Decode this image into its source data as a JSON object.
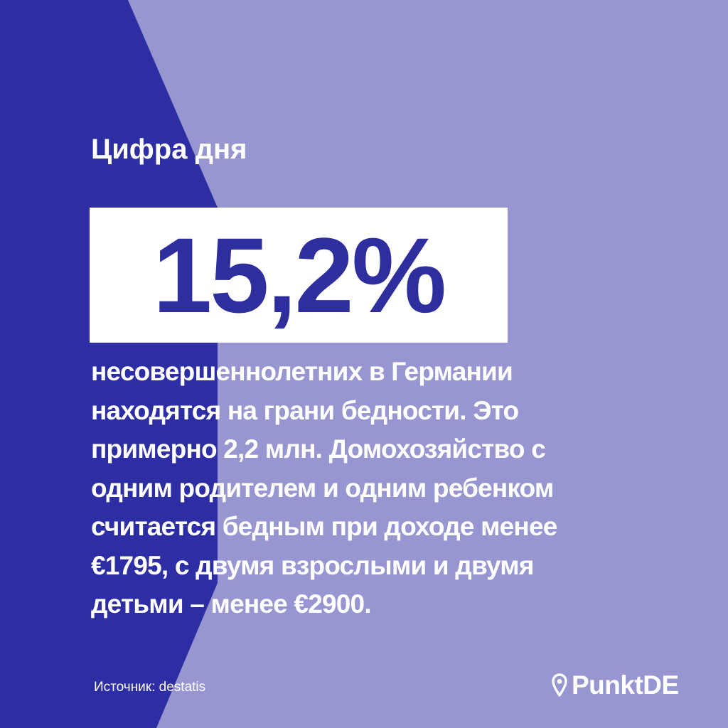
{
  "colors": {
    "background_light": "#9796d0",
    "background_dark": "#2e2ea4",
    "number_color": "#2e2e9f",
    "text": "#ffffff",
    "box": "#ffffff"
  },
  "heading": "Цифра дня",
  "big_number": "15,2%",
  "description": "несовершеннолетних в Германии\nнаходятся на грани бедности. Это\nпримерно 2,2 млн. Домохозяйство с\nодним родителем и одним ребенком\nсчитается бедным при доходе менее\n€1795, с двумя взрослыми и двумя\nдетьми – менее €2900.",
  "source": "Источник: destatis",
  "logo": {
    "icon": "map-pin-icon",
    "text": "PunktDE"
  }
}
